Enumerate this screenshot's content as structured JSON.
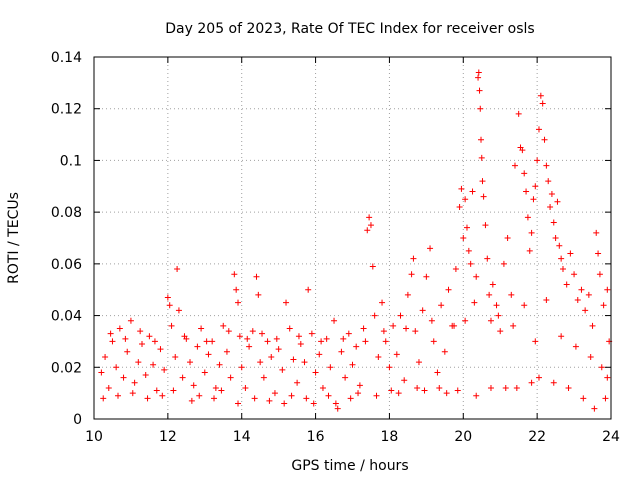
{
  "chart_data": {
    "type": "scatter",
    "title": "Day 205 of 2023, Rate Of TEC Index for receiver osls",
    "xlabel": "GPS time / hours",
    "ylabel": "ROTI / TECUs",
    "xlim": [
      10,
      24
    ],
    "ylim": [
      0,
      0.14
    ],
    "xticks": [
      10,
      12,
      14,
      16,
      18,
      20,
      22,
      24
    ],
    "yticks": [
      0,
      0.02,
      0.04,
      0.06,
      0.08,
      0.1,
      0.12,
      0.14
    ],
    "grid": true,
    "marker": "+",
    "color": "#ff0000",
    "series": [
      {
        "points": [
          [
            10.2,
            0.018
          ],
          [
            10.3,
            0.024
          ],
          [
            10.4,
            0.012
          ],
          [
            10.5,
            0.03
          ],
          [
            10.6,
            0.02
          ],
          [
            10.7,
            0.035
          ],
          [
            10.8,
            0.016
          ],
          [
            10.9,
            0.026
          ],
          [
            11.0,
            0.038
          ],
          [
            11.1,
            0.014
          ],
          [
            11.2,
            0.022
          ],
          [
            11.3,
            0.029
          ],
          [
            11.4,
            0.017
          ],
          [
            11.5,
            0.032
          ],
          [
            11.6,
            0.021
          ],
          [
            11.7,
            0.011
          ],
          [
            11.8,
            0.027
          ],
          [
            11.9,
            0.019
          ],
          [
            12.0,
            0.047
          ],
          [
            12.05,
            0.044
          ],
          [
            12.1,
            0.036
          ],
          [
            12.2,
            0.024
          ],
          [
            12.25,
            0.058
          ],
          [
            12.3,
            0.042
          ],
          [
            12.4,
            0.016
          ],
          [
            12.5,
            0.031
          ],
          [
            12.6,
            0.022
          ],
          [
            12.7,
            0.013
          ],
          [
            12.8,
            0.028
          ],
          [
            12.9,
            0.035
          ],
          [
            13.0,
            0.018
          ],
          [
            13.1,
            0.025
          ],
          [
            13.2,
            0.03
          ],
          [
            13.3,
            0.012
          ],
          [
            13.4,
            0.021
          ],
          [
            13.5,
            0.036
          ],
          [
            13.6,
            0.026
          ],
          [
            13.7,
            0.016
          ],
          [
            13.8,
            0.056
          ],
          [
            13.85,
            0.05
          ],
          [
            13.9,
            0.045
          ],
          [
            13.95,
            0.032
          ],
          [
            14.0,
            0.02
          ],
          [
            14.1,
            0.012
          ],
          [
            14.2,
            0.028
          ],
          [
            14.3,
            0.034
          ],
          [
            14.4,
            0.055
          ],
          [
            14.45,
            0.048
          ],
          [
            14.5,
            0.022
          ],
          [
            14.6,
            0.016
          ],
          [
            14.7,
            0.03
          ],
          [
            14.8,
            0.024
          ],
          [
            14.9,
            0.01
          ],
          [
            15.0,
            0.027
          ],
          [
            15.1,
            0.019
          ],
          [
            15.2,
            0.045
          ],
          [
            15.3,
            0.035
          ],
          [
            15.4,
            0.023
          ],
          [
            15.5,
            0.014
          ],
          [
            15.6,
            0.029
          ],
          [
            15.7,
            0.022
          ],
          [
            15.8,
            0.05
          ],
          [
            15.9,
            0.033
          ],
          [
            16.0,
            0.018
          ],
          [
            16.1,
            0.025
          ],
          [
            16.2,
            0.012
          ],
          [
            16.3,
            0.031
          ],
          [
            16.4,
            0.02
          ],
          [
            16.5,
            0.038
          ],
          [
            16.6,
            0.004
          ],
          [
            16.7,
            0.026
          ],
          [
            16.8,
            0.016
          ],
          [
            16.9,
            0.033
          ],
          [
            17.0,
            0.021
          ],
          [
            17.1,
            0.028
          ],
          [
            17.2,
            0.013
          ],
          [
            17.3,
            0.035
          ],
          [
            17.4,
            0.073
          ],
          [
            17.45,
            0.078
          ],
          [
            17.5,
            0.075
          ],
          [
            17.55,
            0.059
          ],
          [
            17.6,
            0.04
          ],
          [
            17.7,
            0.024
          ],
          [
            17.8,
            0.045
          ],
          [
            17.9,
            0.03
          ],
          [
            18.0,
            0.02
          ],
          [
            18.1,
            0.036
          ],
          [
            18.2,
            0.025
          ],
          [
            18.3,
            0.04
          ],
          [
            18.4,
            0.015
          ],
          [
            18.5,
            0.048
          ],
          [
            18.6,
            0.056
          ],
          [
            18.65,
            0.062
          ],
          [
            18.7,
            0.034
          ],
          [
            18.8,
            0.022
          ],
          [
            18.9,
            0.042
          ],
          [
            19.0,
            0.055
          ],
          [
            19.1,
            0.066
          ],
          [
            19.2,
            0.03
          ],
          [
            19.3,
            0.018
          ],
          [
            19.4,
            0.044
          ],
          [
            19.5,
            0.026
          ],
          [
            19.6,
            0.05
          ],
          [
            19.7,
            0.036
          ],
          [
            19.8,
            0.058
          ],
          [
            19.9,
            0.082
          ],
          [
            19.95,
            0.089
          ],
          [
            20.0,
            0.07
          ],
          [
            20.05,
            0.085
          ],
          [
            20.1,
            0.074
          ],
          [
            20.15,
            0.065
          ],
          [
            20.2,
            0.06
          ],
          [
            20.25,
            0.088
          ],
          [
            20.3,
            0.045
          ],
          [
            20.35,
            0.055
          ],
          [
            20.4,
            0.132
          ],
          [
            20.42,
            0.134
          ],
          [
            20.44,
            0.127
          ],
          [
            20.46,
            0.12
          ],
          [
            20.48,
            0.108
          ],
          [
            20.5,
            0.101
          ],
          [
            20.52,
            0.092
          ],
          [
            20.55,
            0.086
          ],
          [
            20.6,
            0.075
          ],
          [
            20.65,
            0.062
          ],
          [
            20.7,
            0.048
          ],
          [
            20.75,
            0.038
          ],
          [
            20.8,
            0.052
          ],
          [
            20.9,
            0.044
          ],
          [
            21.0,
            0.034
          ],
          [
            21.1,
            0.06
          ],
          [
            21.2,
            0.07
          ],
          [
            21.3,
            0.048
          ],
          [
            21.4,
            0.098
          ],
          [
            21.5,
            0.118
          ],
          [
            21.55,
            0.105
          ],
          [
            21.6,
            0.104
          ],
          [
            21.65,
            0.095
          ],
          [
            21.7,
            0.088
          ],
          [
            21.75,
            0.078
          ],
          [
            21.8,
            0.065
          ],
          [
            21.85,
            0.072
          ],
          [
            21.9,
            0.085
          ],
          [
            21.95,
            0.09
          ],
          [
            22.0,
            0.1
          ],
          [
            22.05,
            0.112
          ],
          [
            22.1,
            0.125
          ],
          [
            22.15,
            0.122
          ],
          [
            22.2,
            0.108
          ],
          [
            22.25,
            0.098
          ],
          [
            22.3,
            0.092
          ],
          [
            22.35,
            0.082
          ],
          [
            22.4,
            0.087
          ],
          [
            22.45,
            0.076
          ],
          [
            22.5,
            0.07
          ],
          [
            22.55,
            0.084
          ],
          [
            22.6,
            0.067
          ],
          [
            22.65,
            0.062
          ],
          [
            22.7,
            0.058
          ],
          [
            22.8,
            0.052
          ],
          [
            22.9,
            0.064
          ],
          [
            23.0,
            0.056
          ],
          [
            23.1,
            0.046
          ],
          [
            23.2,
            0.05
          ],
          [
            23.3,
            0.042
          ],
          [
            23.4,
            0.048
          ],
          [
            23.5,
            0.036
          ],
          [
            23.6,
            0.072
          ],
          [
            23.65,
            0.064
          ],
          [
            23.7,
            0.056
          ],
          [
            23.8,
            0.044
          ],
          [
            23.9,
            0.05
          ],
          [
            23.95,
            0.03
          ],
          [
            10.25,
            0.008
          ],
          [
            10.45,
            0.033
          ],
          [
            10.65,
            0.009
          ],
          [
            10.85,
            0.031
          ],
          [
            11.05,
            0.01
          ],
          [
            11.25,
            0.034
          ],
          [
            11.45,
            0.008
          ],
          [
            11.65,
            0.03
          ],
          [
            11.85,
            0.009
          ],
          [
            12.15,
            0.011
          ],
          [
            12.45,
            0.032
          ],
          [
            12.65,
            0.007
          ],
          [
            12.85,
            0.009
          ],
          [
            13.05,
            0.03
          ],
          [
            13.25,
            0.008
          ],
          [
            13.45,
            0.011
          ],
          [
            13.65,
            0.034
          ],
          [
            13.9,
            0.006
          ],
          [
            14.15,
            0.031
          ],
          [
            14.35,
            0.008
          ],
          [
            14.55,
            0.033
          ],
          [
            14.75,
            0.007
          ],
          [
            14.95,
            0.031
          ],
          [
            15.15,
            0.006
          ],
          [
            15.35,
            0.009
          ],
          [
            15.55,
            0.032
          ],
          [
            15.75,
            0.008
          ],
          [
            15.95,
            0.006
          ],
          [
            16.15,
            0.03
          ],
          [
            16.35,
            0.009
          ],
          [
            16.55,
            0.006
          ],
          [
            16.75,
            0.031
          ],
          [
            16.95,
            0.008
          ],
          [
            17.15,
            0.01
          ],
          [
            17.35,
            0.03
          ],
          [
            17.65,
            0.009
          ],
          [
            17.85,
            0.034
          ],
          [
            18.05,
            0.011
          ],
          [
            18.25,
            0.01
          ],
          [
            18.45,
            0.035
          ],
          [
            18.75,
            0.012
          ],
          [
            18.95,
            0.011
          ],
          [
            19.15,
            0.038
          ],
          [
            19.35,
            0.012
          ],
          [
            19.55,
            0.01
          ],
          [
            19.75,
            0.036
          ],
          [
            19.85,
            0.011
          ],
          [
            20.05,
            0.038
          ],
          [
            20.35,
            0.009
          ],
          [
            20.75,
            0.012
          ],
          [
            20.95,
            0.04
          ],
          [
            21.15,
            0.012
          ],
          [
            21.35,
            0.036
          ],
          [
            21.45,
            0.012
          ],
          [
            21.65,
            0.044
          ],
          [
            21.85,
            0.014
          ],
          [
            21.95,
            0.03
          ],
          [
            22.05,
            0.016
          ],
          [
            22.25,
            0.046
          ],
          [
            22.45,
            0.014
          ],
          [
            22.65,
            0.032
          ],
          [
            22.85,
            0.012
          ],
          [
            23.05,
            0.028
          ],
          [
            23.25,
            0.008
          ],
          [
            23.45,
            0.024
          ],
          [
            23.55,
            0.004
          ],
          [
            23.75,
            0.02
          ],
          [
            23.85,
            0.008
          ],
          [
            23.9,
            0.016
          ]
        ]
      }
    ]
  }
}
